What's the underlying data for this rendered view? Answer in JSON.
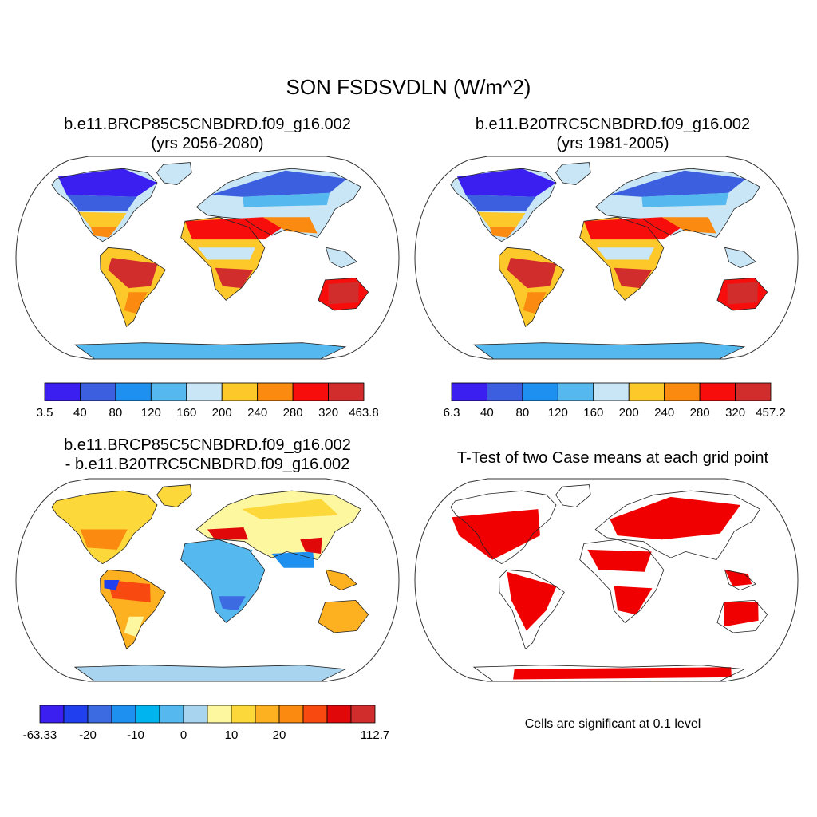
{
  "title": "SON FSDSVDLN (W/m^2)",
  "panels": [
    {
      "title_line1": "b.e11.BRCP85C5CNBDRD.f09_g16.002",
      "title_line2": "(yrs 2056-2080)",
      "colorbar": {
        "colors": [
          "#3b1ef0",
          "#3c5fe0",
          "#1e90f0",
          "#55b8ee",
          "#c8e6f5",
          "#fdc82a",
          "#fb8a10",
          "#f80d0d",
          "#d22d2d"
        ],
        "labels": [
          "3.5",
          "40",
          "80",
          "120",
          "160",
          "200",
          "240",
          "280",
          "320",
          "463.8"
        ]
      }
    },
    {
      "title_line1": "b.e11.B20TRC5CNBDRD.f09_g16.002",
      "title_line2": "(yrs 1981-2005)",
      "colorbar": {
        "colors": [
          "#3b1ef0",
          "#3c5fe0",
          "#1e90f0",
          "#55b8ee",
          "#c8e6f5",
          "#fdc82a",
          "#fb8a10",
          "#f80d0d",
          "#d22d2d"
        ],
        "labels": [
          "6.3",
          "40",
          "80",
          "120",
          "160",
          "200",
          "240",
          "280",
          "320",
          "457.2"
        ]
      }
    },
    {
      "title_line1": "b.e11.BRCP85C5CNBDRD.f09_g16.002",
      "title_line2": "- b.e11.B20TRC5CNBDRD.f09_g16.002",
      "colorbar": {
        "colors": [
          "#3b1ef0",
          "#2040f0",
          "#3c6ae0",
          "#1e90f0",
          "#00b4f0",
          "#55b8ee",
          "#a8d4f0",
          "#fdf7a0",
          "#fdd83a",
          "#fdb020",
          "#fb8a10",
          "#f84a10",
          "#e00808",
          "#d22d2d"
        ],
        "labels": [
          "-63.33",
          "",
          "-20",
          "",
          "-10",
          "",
          "0",
          "",
          "10",
          "",
          "20",
          "",
          "",
          "",
          "112.7"
        ]
      }
    },
    {
      "title_line1": "T-Test of two Case means at each grid point",
      "note": "Cells are significant at 0.1 level",
      "sig_color": "#f00000"
    }
  ]
}
